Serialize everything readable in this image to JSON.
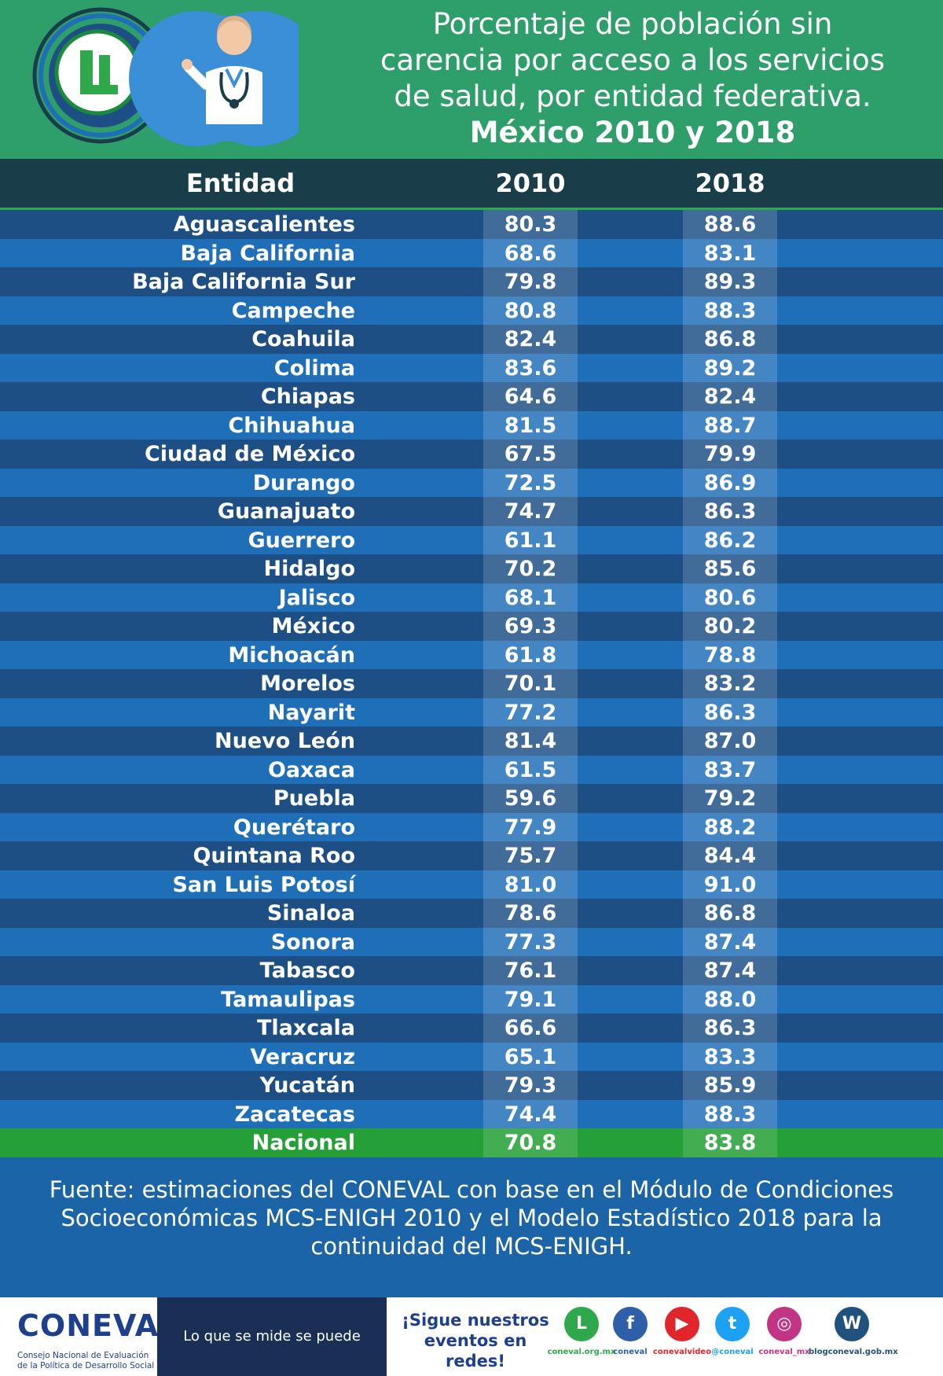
{
  "title": {
    "lines": [
      "Porcentaje de población sin",
      "carencia por acceso a los servicios",
      "de salud, por entidad federativa.",
      "México 2010 y 2018"
    ]
  },
  "columns": {
    "entity": "Entidad",
    "y2010": "2010",
    "y2018": "2018"
  },
  "chart_data": {
    "type": "table",
    "title": "Porcentaje de población sin carencia por acceso a los servicios de salud, por entidad federativa. México 2010 y 2018",
    "columns": [
      "Entidad",
      "2010",
      "2018"
    ],
    "rows": [
      {
        "entidad": "Aguascalientes",
        "y2010": "80.3",
        "y2018": "88.6"
      },
      {
        "entidad": "Baja California",
        "y2010": "68.6",
        "y2018": "83.1"
      },
      {
        "entidad": "Baja California Sur",
        "y2010": "79.8",
        "y2018": "89.3"
      },
      {
        "entidad": "Campeche",
        "y2010": "80.8",
        "y2018": "88.3"
      },
      {
        "entidad": "Coahuila",
        "y2010": "82.4",
        "y2018": "86.8"
      },
      {
        "entidad": "Colima",
        "y2010": "83.6",
        "y2018": "89.2"
      },
      {
        "entidad": "Chiapas",
        "y2010": "64.6",
        "y2018": "82.4"
      },
      {
        "entidad": "Chihuahua",
        "y2010": "81.5",
        "y2018": "88.7"
      },
      {
        "entidad": "Ciudad de México",
        "y2010": "67.5",
        "y2018": "79.9"
      },
      {
        "entidad": "Durango",
        "y2010": "72.5",
        "y2018": "86.9"
      },
      {
        "entidad": "Guanajuato",
        "y2010": "74.7",
        "y2018": "86.3"
      },
      {
        "entidad": "Guerrero",
        "y2010": "61.1",
        "y2018": "86.2"
      },
      {
        "entidad": "Hidalgo",
        "y2010": "70.2",
        "y2018": "85.6"
      },
      {
        "entidad": "Jalisco",
        "y2010": "68.1",
        "y2018": "80.6"
      },
      {
        "entidad": "México",
        "y2010": "69.3",
        "y2018": "80.2"
      },
      {
        "entidad": "Michoacán",
        "y2010": "61.8",
        "y2018": "78.8"
      },
      {
        "entidad": "Morelos",
        "y2010": "70.1",
        "y2018": "83.2"
      },
      {
        "entidad": "Nayarit",
        "y2010": "77.2",
        "y2018": "86.3"
      },
      {
        "entidad": "Nuevo León",
        "y2010": "81.4",
        "y2018": "87.0"
      },
      {
        "entidad": "Oaxaca",
        "y2010": "61.5",
        "y2018": "83.7"
      },
      {
        "entidad": "Puebla",
        "y2010": "59.6",
        "y2018": "79.2"
      },
      {
        "entidad": "Querétaro",
        "y2010": "77.9",
        "y2018": "88.2"
      },
      {
        "entidad": "Quintana Roo",
        "y2010": "75.7",
        "y2018": "84.4"
      },
      {
        "entidad": "San Luis Potosí",
        "y2010": "81.0",
        "y2018": "91.0"
      },
      {
        "entidad": "Sinaloa",
        "y2010": "78.6",
        "y2018": "86.8"
      },
      {
        "entidad": "Sonora",
        "y2010": "77.3",
        "y2018": "87.4"
      },
      {
        "entidad": "Tabasco",
        "y2010": "76.1",
        "y2018": "87.4"
      },
      {
        "entidad": "Tamaulipas",
        "y2010": "79.1",
        "y2018": "88.0"
      },
      {
        "entidad": "Tlaxcala",
        "y2010": "66.6",
        "y2018": "86.3"
      },
      {
        "entidad": "Veracruz",
        "y2010": "65.1",
        "y2018": "83.3"
      },
      {
        "entidad": "Yucatán",
        "y2010": "79.3",
        "y2018": "85.9"
      },
      {
        "entidad": "Zacatecas",
        "y2010": "74.4",
        "y2018": "88.3"
      },
      {
        "entidad": "Nacional",
        "y2010": "70.8",
        "y2018": "83.8",
        "highlight": true
      }
    ]
  },
  "source": {
    "lines": [
      "Fuente: estimaciones del CONEVAL con base en el  Módulo de Condiciones",
      "Socioeconómicas MCS-ENIGH 2010 y el Modelo Estadístico 2018 para la",
      "continuidad del MCS-ENIGH."
    ]
  },
  "footer": {
    "brand": "CONEVAL",
    "brand_sub1": "Consejo Nacional de Evaluación",
    "brand_sub2": "de la Política de Desarrollo Social",
    "slogan": "Lo que se mide se puede mejorar",
    "follow1": "¡Sigue nuestros",
    "follow2": "eventos en redes!",
    "social": [
      {
        "icon": "coneval-web-icon",
        "label": "coneval.org.mx",
        "color": "#2ea84a"
      },
      {
        "icon": "facebook-icon",
        "label": "coneval",
        "color": "#2f5fa8"
      },
      {
        "icon": "youtube-icon",
        "label": "conevalvideo",
        "color": "#e0252b"
      },
      {
        "icon": "twitter-icon",
        "label": "@coneval",
        "color": "#1da1f2"
      },
      {
        "icon": "instagram-icon",
        "label": "coneval_mx",
        "color": "#c13584"
      },
      {
        "icon": "wordpress-icon",
        "label": "blogconeval.gob.mx",
        "color": "#21527e"
      }
    ]
  },
  "colors": {
    "header_bg": "#2e9e6a",
    "table_header_bg": "#1a3d4a",
    "row_dark": "#1d4f85",
    "row_light": "#1f6fb8",
    "national_row": "#25a036"
  }
}
